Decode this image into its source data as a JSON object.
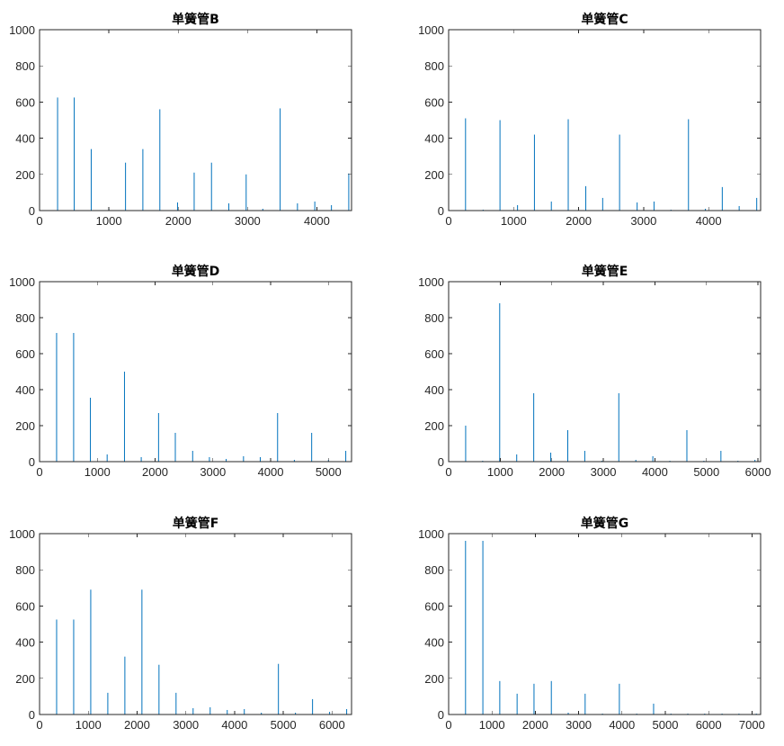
{
  "colors": {
    "line": "#0072BD",
    "axis": "#262626",
    "title": "#000000",
    "background": "#ffffff"
  },
  "chart_data": [
    {
      "type": "line",
      "title": "单簧管B",
      "xlim": [
        0,
        4500
      ],
      "ylim": [
        0,
        1000
      ],
      "xticks": [
        0,
        1000,
        2000,
        3000,
        4000
      ],
      "yticks": [
        0,
        200,
        400,
        600,
        800,
        1000
      ],
      "grid": false,
      "series": [
        {
          "x": [
            260,
            500,
            745,
            1000,
            1240,
            1490,
            1735,
            1990,
            2230,
            2480,
            2730,
            2980,
            3220,
            3470,
            3720,
            3970,
            4210,
            4460
          ],
          "y": [
            625,
            625,
            340,
            10,
            265,
            340,
            560,
            45,
            210,
            265,
            40,
            200,
            10,
            565,
            40,
            50,
            30,
            205
          ]
        }
      ]
    },
    {
      "type": "line",
      "title": "单簧管C",
      "xlim": [
        0,
        4800
      ],
      "ylim": [
        0,
        1000
      ],
      "xticks": [
        0,
        1000,
        2000,
        3000,
        4000
      ],
      "yticks": [
        0,
        200,
        400,
        600,
        800,
        1000
      ],
      "grid": false,
      "series": [
        {
          "x": [
            260,
            530,
            790,
            1060,
            1320,
            1580,
            1840,
            2110,
            2370,
            2630,
            2900,
            3160,
            3420,
            3690,
            3950,
            4210,
            4470,
            4740
          ],
          "y": [
            510,
            5,
            500,
            30,
            420,
            50,
            505,
            135,
            70,
            420,
            45,
            50,
            5,
            505,
            10,
            130,
            25,
            70
          ]
        }
      ]
    },
    {
      "type": "line",
      "title": "单簧管D",
      "xlim": [
        0,
        5400
      ],
      "ylim": [
        0,
        1000
      ],
      "xticks": [
        0,
        1000,
        2000,
        3000,
        4000,
        5000
      ],
      "yticks": [
        0,
        200,
        400,
        600,
        800,
        1000
      ],
      "grid": false,
      "series": [
        {
          "x": [
            295,
            590,
            880,
            1170,
            1470,
            1760,
            2060,
            2350,
            2650,
            2940,
            3230,
            3530,
            3820,
            4120,
            4410,
            4710,
            5000,
            5300
          ],
          "y": [
            715,
            715,
            355,
            40,
            500,
            25,
            270,
            160,
            60,
            25,
            15,
            30,
            25,
            270,
            10,
            160,
            10,
            60
          ]
        }
      ]
    },
    {
      "type": "line",
      "title": "单簧管E",
      "xlim": [
        0,
        6050
      ],
      "ylim": [
        0,
        1000
      ],
      "xticks": [
        0,
        1000,
        2000,
        3000,
        4000,
        5000,
        6000
      ],
      "yticks": [
        0,
        200,
        400,
        600,
        800,
        1000
      ],
      "grid": false,
      "series": [
        {
          "x": [
            330,
            660,
            990,
            1320,
            1650,
            1980,
            2310,
            2640,
            2970,
            3300,
            3630,
            3960,
            4290,
            4620,
            4950,
            5280,
            5610,
            5940
          ],
          "y": [
            200,
            5,
            880,
            40,
            380,
            50,
            175,
            60,
            5,
            380,
            10,
            30,
            5,
            175,
            5,
            60,
            5,
            10
          ]
        }
      ]
    },
    {
      "type": "line",
      "title": "单簧管F",
      "xlim": [
        0,
        6400
      ],
      "ylim": [
        0,
        1000
      ],
      "xticks": [
        0,
        1000,
        2000,
        3000,
        4000,
        5000,
        6000
      ],
      "yticks": [
        0,
        200,
        400,
        600,
        800,
        1000
      ],
      "grid": false,
      "series": [
        {
          "x": [
            350,
            700,
            1050,
            1400,
            1750,
            2100,
            2450,
            2800,
            3150,
            3500,
            3850,
            4200,
            4550,
            4900,
            5250,
            5600,
            5950,
            6300
          ],
          "y": [
            525,
            525,
            690,
            120,
            320,
            690,
            275,
            120,
            35,
            40,
            25,
            30,
            10,
            280,
            10,
            85,
            15,
            30
          ]
        }
      ]
    },
    {
      "type": "line",
      "title": "单簧管G",
      "xlim": [
        0,
        7200
      ],
      "ylim": [
        0,
        1000
      ],
      "xticks": [
        0,
        1000,
        2000,
        3000,
        4000,
        5000,
        6000,
        7000
      ],
      "yticks": [
        0,
        200,
        400,
        600,
        800,
        1000
      ],
      "grid": false,
      "series": [
        {
          "x": [
            390,
            790,
            1180,
            1580,
            1970,
            2370,
            2760,
            3150,
            3550,
            3940,
            4340,
            4730,
            5130,
            5520,
            5910,
            6310,
            6700,
            7100
          ],
          "y": [
            960,
            960,
            185,
            115,
            170,
            185,
            10,
            115,
            5,
            170,
            5,
            60,
            5,
            5,
            5,
            5,
            5,
            5
          ]
        }
      ]
    }
  ]
}
